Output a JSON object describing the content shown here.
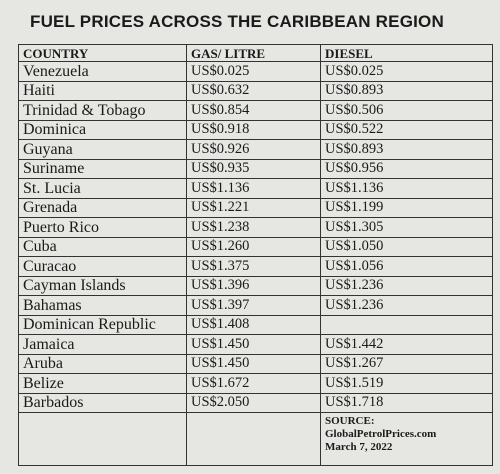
{
  "title": "FUEL PRICES ACROSS THE CARIBBEAN REGION",
  "table": {
    "headers": [
      "COUNTRY",
      "GAS/ LITRE",
      "DIESEL"
    ],
    "rows": [
      [
        "Venezuela",
        "US$0.025",
        "US$0.025"
      ],
      [
        "Haiti",
        "US$0.632",
        "US$0.893"
      ],
      [
        "Trinidad & Tobago",
        "US$0.854",
        "US$0.506"
      ],
      [
        "Dominica",
        "US$0.918",
        "US$0.522"
      ],
      [
        "Guyana",
        "US$0.926",
        "US$0.893"
      ],
      [
        "Suriname",
        "US$0.935",
        "US$0.956"
      ],
      [
        "St. Lucia",
        "US$1.136",
        "US$1.136"
      ],
      [
        "Grenada",
        "US$1.221",
        "US$1.199"
      ],
      [
        "Puerto Rico",
        "US$1.238",
        "US$1.305"
      ],
      [
        "Cuba",
        "US$1.260",
        "US$1.050"
      ],
      [
        "Curacao",
        "US$1.375",
        "US$1.056"
      ],
      [
        "Cayman Islands",
        "US$1.396",
        "US$1.236"
      ],
      [
        "Bahamas",
        "US$1.397",
        "US$1.236"
      ],
      [
        "Dominican Republic",
        "US$1.408",
        null
      ],
      [
        "Jamaica",
        "US$1.450",
        "US$1.442"
      ],
      [
        "Aruba",
        "US$1.450",
        "US$1.267"
      ],
      [
        "Belize",
        "US$1.672",
        "US$1.519"
      ],
      [
        "Barbados",
        "US$2.050",
        "US$1.718"
      ]
    ],
    "source": [
      "SOURCE:",
      "GlobalPetrolPrices.com",
      "March 7, 2022"
    ]
  }
}
